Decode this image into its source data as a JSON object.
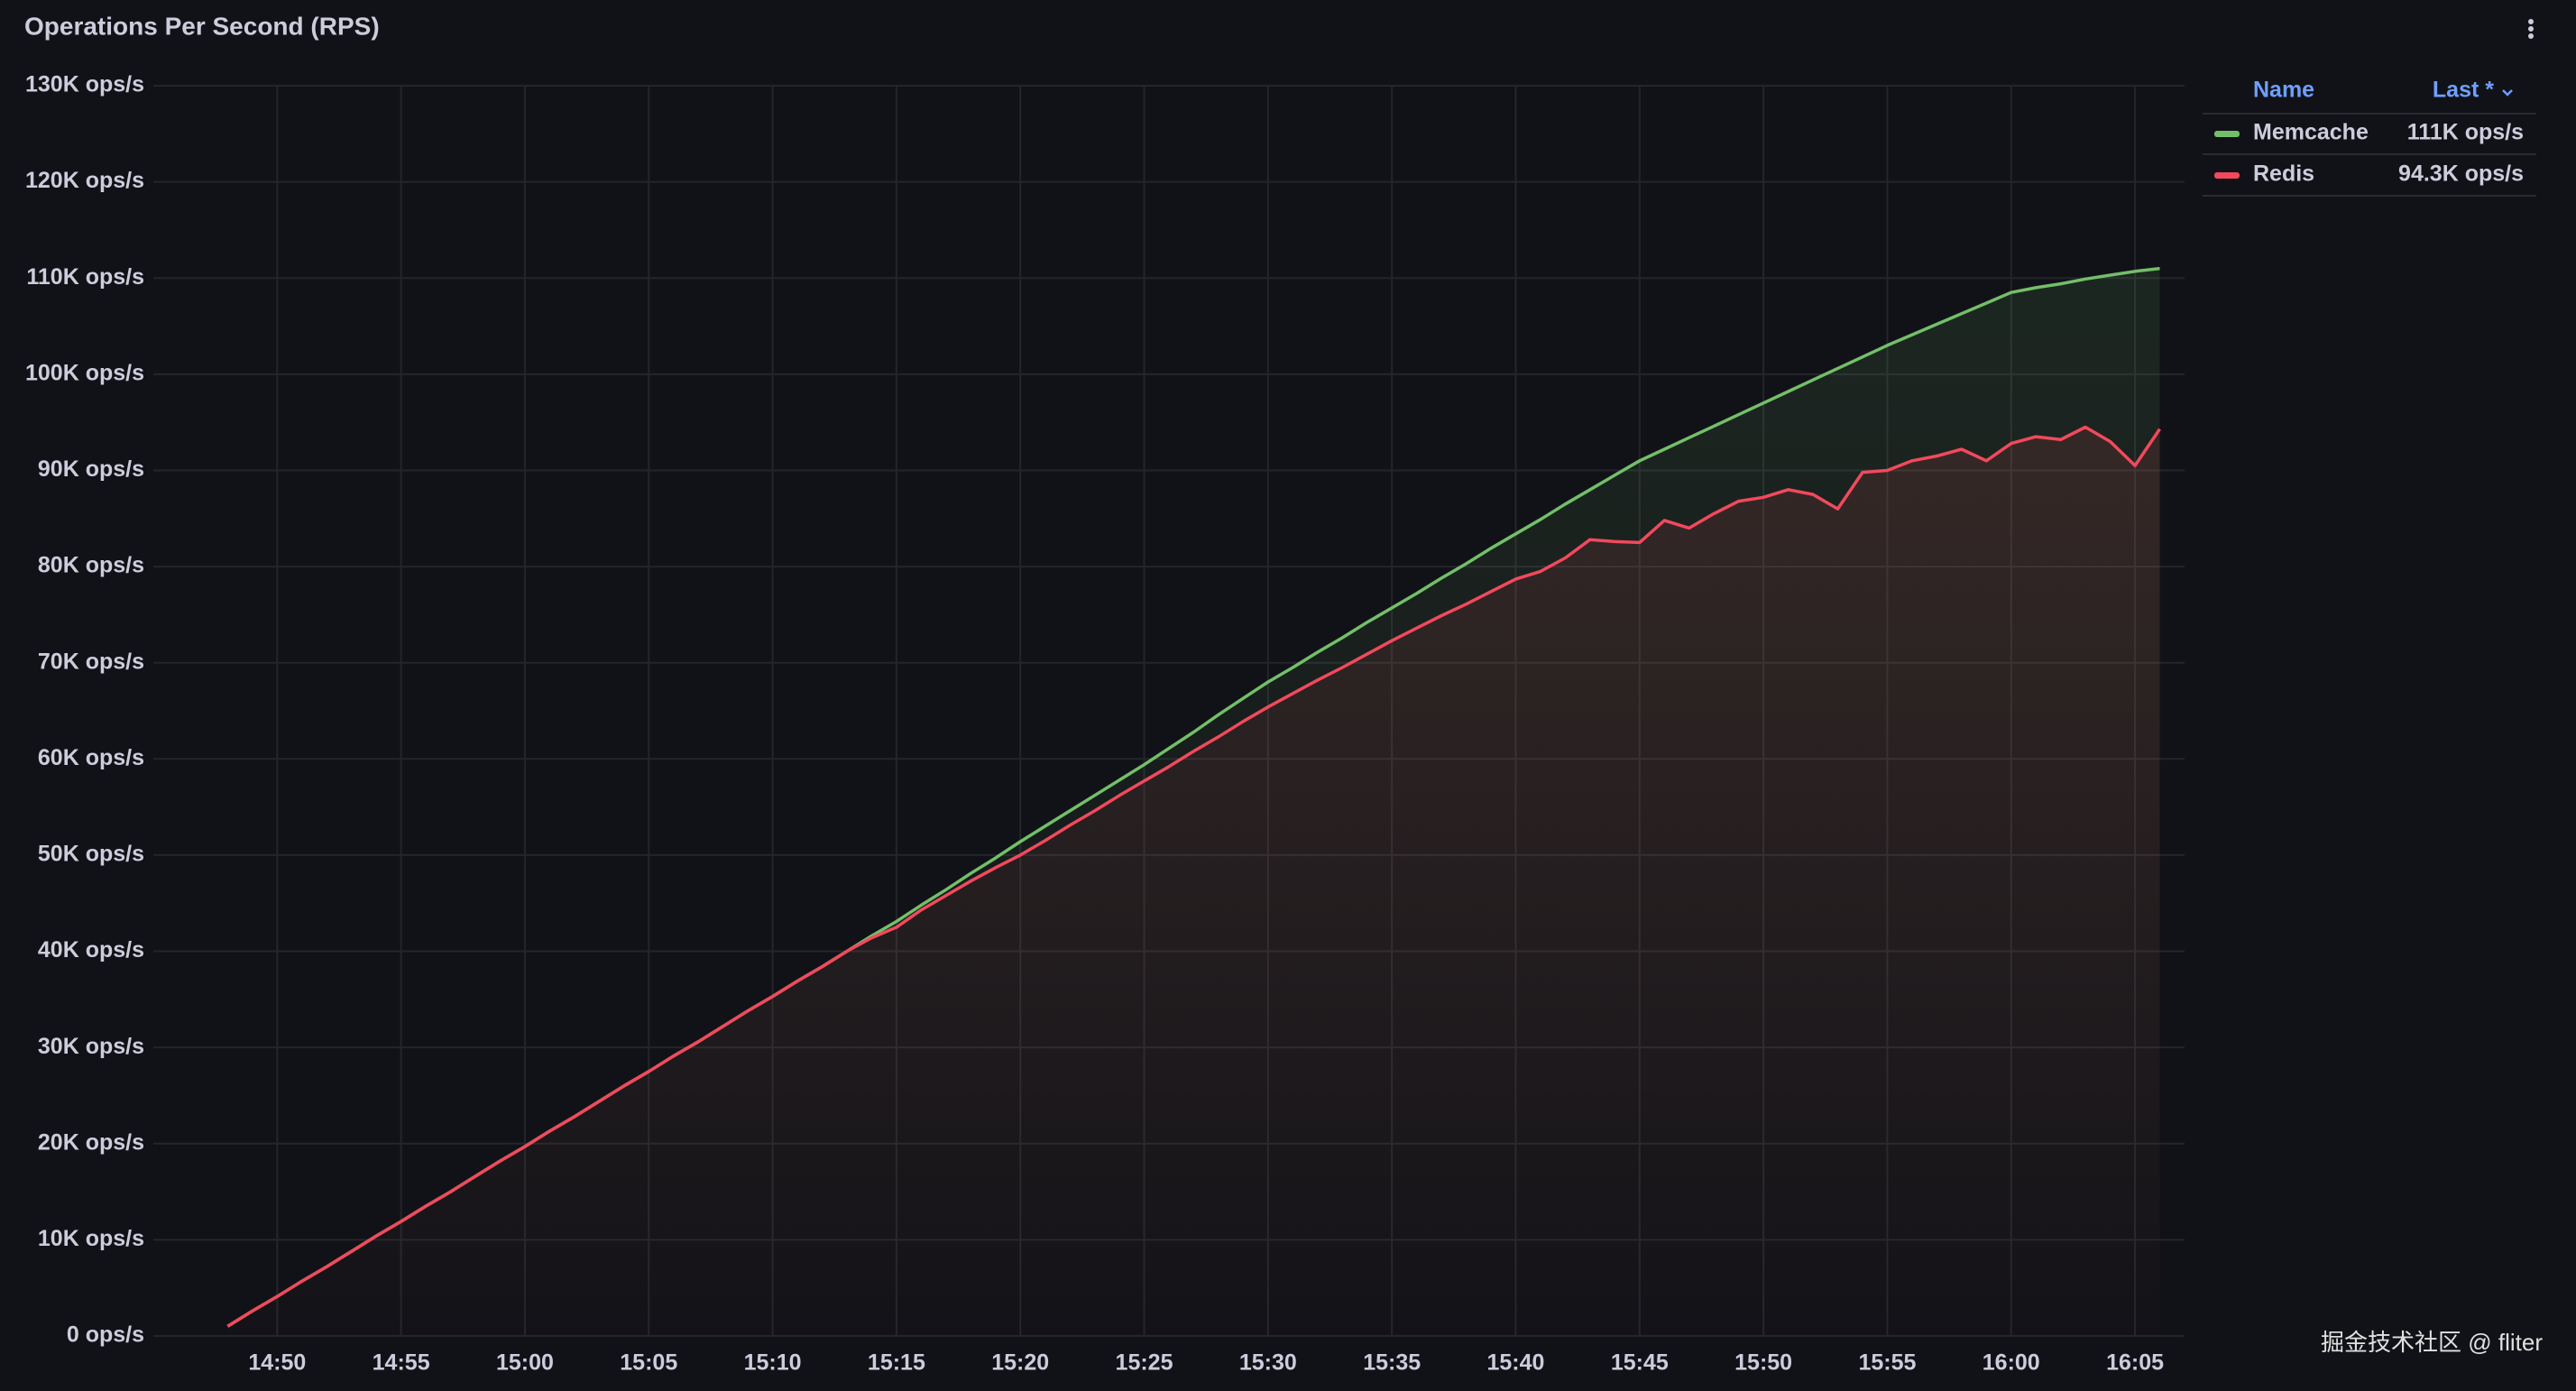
{
  "chart_data": {
    "type": "line",
    "title": "Operations Per Second (RPS)",
    "x": [
      "14:48",
      "14:49",
      "14:50",
      "14:51",
      "14:52",
      "14:53",
      "14:54",
      "14:55",
      "14:56",
      "14:57",
      "14:58",
      "14:59",
      "15:00",
      "15:01",
      "15:02",
      "15:03",
      "15:04",
      "15:05",
      "15:06",
      "15:07",
      "15:08",
      "15:09",
      "15:10",
      "15:11",
      "15:12",
      "15:13",
      "15:14",
      "15:15",
      "15:16",
      "15:17",
      "15:18",
      "15:19",
      "15:20",
      "15:21",
      "15:22",
      "15:23",
      "15:24",
      "15:25",
      "15:26",
      "15:27",
      "15:28",
      "15:29",
      "15:30",
      "15:31",
      "15:32",
      "15:33",
      "15:34",
      "15:35",
      "15:36",
      "15:37",
      "15:38",
      "15:39",
      "15:40",
      "15:41",
      "15:42",
      "15:43",
      "15:44",
      "15:45",
      "15:46",
      "15:47",
      "15:48",
      "15:49",
      "15:50",
      "15:51",
      "15:52",
      "15:53",
      "15:54",
      "15:55",
      "15:56",
      "15:57",
      "15:58",
      "15:59",
      "16:00",
      "16:01",
      "16:02",
      "16:03",
      "16:04",
      "16:05",
      "16:06"
    ],
    "series": [
      {
        "name": "Memcache",
        "color": "#73bf69",
        "last": {
          "value": 111000,
          "label": "111K ops/s"
        },
        "values": [
          1000,
          2600,
          4100,
          5700,
          7200,
          8800,
          10400,
          11900,
          13500,
          15000,
          16600,
          18200,
          19700,
          21300,
          22800,
          24400,
          26000,
          27500,
          29100,
          30600,
          32200,
          33800,
          35300,
          36900,
          38400,
          40000,
          41600,
          43100,
          44800,
          46400,
          48100,
          49700,
          51400,
          53000,
          54600,
          56200,
          57800,
          59400,
          61100,
          62800,
          64600,
          66300,
          68000,
          69500,
          71100,
          72600,
          74200,
          75700,
          77200,
          78800,
          80300,
          81900,
          83400,
          84900,
          86500,
          88000,
          89500,
          91000,
          92200,
          93400,
          94600,
          95800,
          97000,
          98200,
          99400,
          100600,
          101800,
          103000,
          104100,
          105200,
          106300,
          107400,
          108500,
          109000,
          109400,
          109900,
          110300,
          110700,
          111000
        ]
      },
      {
        "name": "Redis",
        "color": "#f2495c",
        "last": {
          "value": 94300,
          "label": "94.3K ops/s"
        },
        "values": [
          1000,
          2600,
          4100,
          5700,
          7200,
          8800,
          10400,
          11900,
          13500,
          15000,
          16600,
          18200,
          19700,
          21300,
          22800,
          24400,
          26000,
          27500,
          29100,
          30600,
          32200,
          33800,
          35300,
          36900,
          38400,
          40000,
          41400,
          42500,
          44300,
          45800,
          47300,
          48700,
          50000,
          51500,
          53100,
          54600,
          56200,
          57700,
          59200,
          60800,
          62300,
          63900,
          65400,
          66800,
          68200,
          69500,
          70900,
          72300,
          73600,
          74900,
          76100,
          77400,
          78700,
          79500,
          80900,
          82800,
          82600,
          82500,
          84800,
          84000,
          85500,
          86800,
          87200,
          88000,
          87500,
          86000,
          89800,
          90000,
          91000,
          91500,
          92200,
          91000,
          92800,
          93500,
          93200,
          94500,
          93000,
          90500,
          94300
        ]
      }
    ],
    "xlim": [
      "14:45",
      "16:07"
    ],
    "xticks": [
      "14:50",
      "14:55",
      "15:00",
      "15:05",
      "15:10",
      "15:15",
      "15:20",
      "15:25",
      "15:30",
      "15:35",
      "15:40",
      "15:45",
      "15:50",
      "15:55",
      "16:00",
      "16:05"
    ],
    "ylim": [
      0,
      130000
    ],
    "yticks": [
      {
        "value": 0,
        "label": "0 ops/s"
      },
      {
        "value": 10000,
        "label": "10K ops/s"
      },
      {
        "value": 20000,
        "label": "20K ops/s"
      },
      {
        "value": 30000,
        "label": "30K ops/s"
      },
      {
        "value": 40000,
        "label": "40K ops/s"
      },
      {
        "value": 50000,
        "label": "50K ops/s"
      },
      {
        "value": 60000,
        "label": "60K ops/s"
      },
      {
        "value": 70000,
        "label": "70K ops/s"
      },
      {
        "value": 80000,
        "label": "80K ops/s"
      },
      {
        "value": 90000,
        "label": "90K ops/s"
      },
      {
        "value": 100000,
        "label": "100K ops/s"
      },
      {
        "value": 110000,
        "label": "110K ops/s"
      },
      {
        "value": 120000,
        "label": "120K ops/s"
      },
      {
        "value": 130000,
        "label": "130K ops/s"
      }
    ],
    "grid": true,
    "legend": {
      "position": "right",
      "header_name": "Name",
      "header_last": "Last *"
    },
    "watermark": "掘金技术社区 @ fliter"
  }
}
